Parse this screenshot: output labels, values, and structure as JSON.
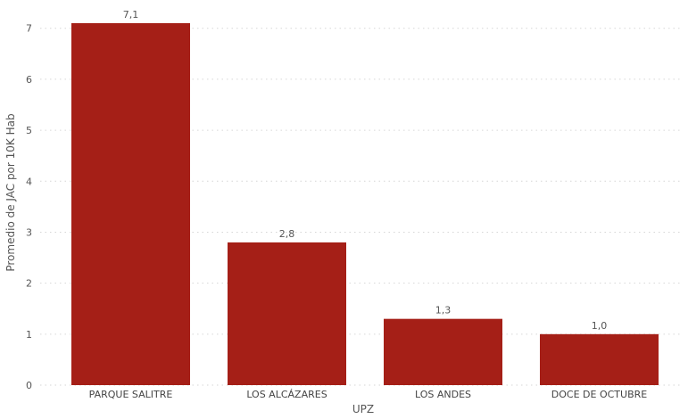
{
  "chart_data": {
    "type": "bar",
    "categories": [
      "PARQUE SALITRE",
      "LOS ALCÁZARES",
      "LOS ANDES",
      "DOCE DE OCTUBRE"
    ],
    "values": [
      7.1,
      2.8,
      1.3,
      1.0
    ],
    "data_labels": [
      "7,1",
      "2,8",
      "1,3",
      "1,0"
    ],
    "xlabel": "UPZ",
    "ylabel": "Promedio de JAC por 10K Hab",
    "ylim": [
      0,
      7.1
    ],
    "yticks": [
      0,
      1,
      2,
      3,
      4,
      5,
      6,
      7
    ],
    "grid": true,
    "bar_color": "#A51F17",
    "grid_color": "#d6d6d6"
  }
}
